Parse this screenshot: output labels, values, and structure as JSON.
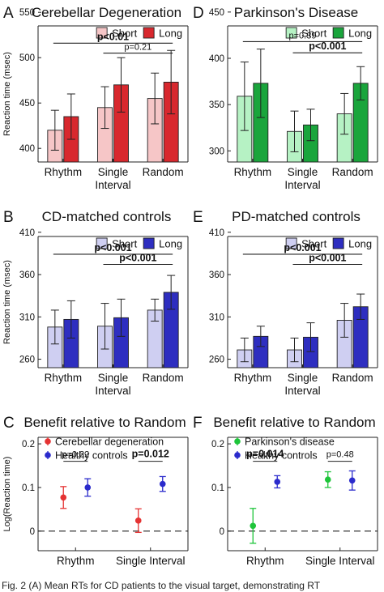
{
  "caption": "Fig. 2 (A) Mean RTs for CD patients to the visual target, demonstrating RT",
  "colors": {
    "cd_short": "#f6c6c7",
    "cd_long": "#d8282e",
    "pd_short": "#b6f2c4",
    "pd_long": "#1aa53c",
    "ctl_short": "#cfcff2",
    "ctl_long": "#2e2ec0",
    "cd_point": "#e53333",
    "pd_point": "#1ec53a",
    "ctl_point": "#2b2bcc"
  },
  "chart_data": [
    {
      "id": "A",
      "letter": "A",
      "type": "bar",
      "title": "Cerebellar Degeneration",
      "ylabel": "Reaction time (msec)",
      "ylim": [
        385,
        535
      ],
      "yticks": [
        400,
        450,
        500,
        550
      ],
      "ytick_labels": [
        "400",
        "450",
        "500",
        "550"
      ],
      "categories": [
        [
          "Rhythm"
        ],
        [
          "Single",
          "Interval"
        ],
        [
          "Random"
        ]
      ],
      "legend": [
        "Short",
        "Long"
      ],
      "colors": [
        "cd_short",
        "cd_long"
      ],
      "series": [
        {
          "name": "Short",
          "values": [
            420,
            445,
            455
          ],
          "errors": [
            22,
            23,
            28
          ]
        },
        {
          "name": "Long",
          "values": [
            435,
            470,
            473
          ],
          "errors": [
            25,
            30,
            35
          ]
        }
      ],
      "brackets": [
        {
          "from": 0,
          "to": 2,
          "label": "p<0.01",
          "bold": true,
          "y": 516
        },
        {
          "from": 1,
          "to": 2,
          "label": "p=0.21",
          "bold": false,
          "y": 505
        }
      ]
    },
    {
      "id": "D",
      "letter": "D",
      "type": "bar",
      "title": "Parkinson's Disease",
      "ylabel": "",
      "ylim": [
        288,
        435
      ],
      "yticks": [
        300,
        350,
        400,
        450
      ],
      "ytick_labels": [
        "300",
        "350",
        "400",
        "450"
      ],
      "categories": [
        [
          "Rhythm"
        ],
        [
          "Single",
          "Interval"
        ],
        [
          "Random"
        ]
      ],
      "legend": [
        "Short",
        "Long"
      ],
      "colors": [
        "pd_short",
        "pd_long"
      ],
      "series": [
        {
          "name": "Short",
          "values": [
            359,
            321,
            340
          ],
          "errors": [
            37,
            22,
            22
          ]
        },
        {
          "name": "Long",
          "values": [
            373,
            328,
            373
          ],
          "errors": [
            37,
            17,
            18
          ]
        }
      ],
      "brackets": [
        {
          "from": 0,
          "to": 2,
          "label": "p=0.39",
          "bold": false,
          "y": 418
        },
        {
          "from": 1,
          "to": 2,
          "label": "p<0.001",
          "bold": true,
          "y": 406
        }
      ]
    },
    {
      "id": "B",
      "letter": "B",
      "type": "bar",
      "title": "CD-matched controls",
      "ylabel": "Reaction time (msec)",
      "ylim": [
        250,
        405
      ],
      "yticks": [
        260,
        310,
        360,
        410
      ],
      "ytick_labels": [
        "260",
        "310",
        "360",
        "410"
      ],
      "categories": [
        [
          "Rhythm"
        ],
        [
          "Single",
          "Interval"
        ],
        [
          "Random"
        ]
      ],
      "legend": [
        "Short",
        "Long"
      ],
      "colors": [
        "ctl_short",
        "ctl_long"
      ],
      "series": [
        {
          "name": "Short",
          "values": [
            298,
            299,
            318
          ],
          "errors": [
            20,
            27,
            13
          ]
        },
        {
          "name": "Long",
          "values": [
            307,
            309,
            339
          ],
          "errors": [
            22,
            22,
            20
          ]
        }
      ],
      "brackets": [
        {
          "from": 0,
          "to": 2,
          "label": "p<0.001",
          "bold": true,
          "y": 384
        },
        {
          "from": 1,
          "to": 2,
          "label": "p<0.001",
          "bold": true,
          "y": 372
        }
      ]
    },
    {
      "id": "E",
      "letter": "E",
      "type": "bar",
      "title": "PD-matched controls",
      "ylabel": "",
      "ylim": [
        250,
        405
      ],
      "yticks": [
        260,
        310,
        360,
        410
      ],
      "ytick_labels": [
        "260",
        "310",
        "360",
        "410"
      ],
      "categories": [
        [
          "Rhythm"
        ],
        [
          "Single",
          "Interval"
        ],
        [
          "Random"
        ]
      ],
      "legend": [
        "Short",
        "Long"
      ],
      "colors": [
        "ctl_short",
        "ctl_long"
      ],
      "series": [
        {
          "name": "Short",
          "values": [
            271,
            271,
            306
          ],
          "errors": [
            14,
            14,
            20
          ]
        },
        {
          "name": "Long",
          "values": [
            287,
            286,
            322
          ],
          "errors": [
            12,
            17,
            15
          ]
        }
      ],
      "brackets": [
        {
          "from": 0,
          "to": 2,
          "label": "p<0.001",
          "bold": true,
          "y": 384
        },
        {
          "from": 1,
          "to": 2,
          "label": "p<0.001",
          "bold": true,
          "y": 372
        }
      ]
    },
    {
      "id": "C",
      "letter": "C",
      "type": "scatter",
      "title": "Benefit relative to Random",
      "ylabel": "Log(Reaction time)",
      "ylim": [
        -0.045,
        0.215
      ],
      "yticks": [
        0,
        0.1,
        0.2
      ],
      "ytick_labels": [
        "0",
        "0.1",
        "0.2"
      ],
      "categories": [
        [
          "Rhythm"
        ],
        [
          "Single Interval"
        ]
      ],
      "legend": [
        "Cerebellar degeneration",
        "Healthy controls"
      ],
      "colors": [
        "cd_point",
        "ctl_point"
      ],
      "series": [
        {
          "name": "Cerebellar degeneration",
          "values": [
            0.077,
            0.024
          ],
          "errors": [
            0.025,
            0.027
          ]
        },
        {
          "name": "Healthy controls",
          "values": [
            0.1,
            0.108
          ],
          "errors": [
            0.02,
            0.017
          ]
        }
      ],
      "pvalues": [
        {
          "category": 0,
          "label": "p=0.22",
          "bold": false
        },
        {
          "category": 1,
          "label": "p=0.012",
          "bold": true
        }
      ]
    },
    {
      "id": "F",
      "letter": "F",
      "type": "scatter",
      "title": "Benefit relative to Random",
      "ylabel": "",
      "ylim": [
        -0.045,
        0.215
      ],
      "yticks": [
        0,
        0.1,
        0.2
      ],
      "ytick_labels": [
        "0",
        "0.1",
        "0.2"
      ],
      "categories": [
        [
          "Rhythm"
        ],
        [
          "Single Interval"
        ]
      ],
      "legend": [
        "Parkinson's disease",
        "Healthy controls"
      ],
      "colors": [
        "pd_point",
        "ctl_point"
      ],
      "series": [
        {
          "name": "Parkinson's disease",
          "values": [
            0.012,
            0.118
          ],
          "errors": [
            0.04,
            0.018
          ]
        },
        {
          "name": "Healthy controls",
          "values": [
            0.113,
            0.116
          ],
          "errors": [
            0.014,
            0.022
          ]
        }
      ],
      "pvalues": [
        {
          "category": 0,
          "label": "p=0.014",
          "bold": true
        },
        {
          "category": 1,
          "label": "p=0.48",
          "bold": false
        }
      ]
    }
  ]
}
